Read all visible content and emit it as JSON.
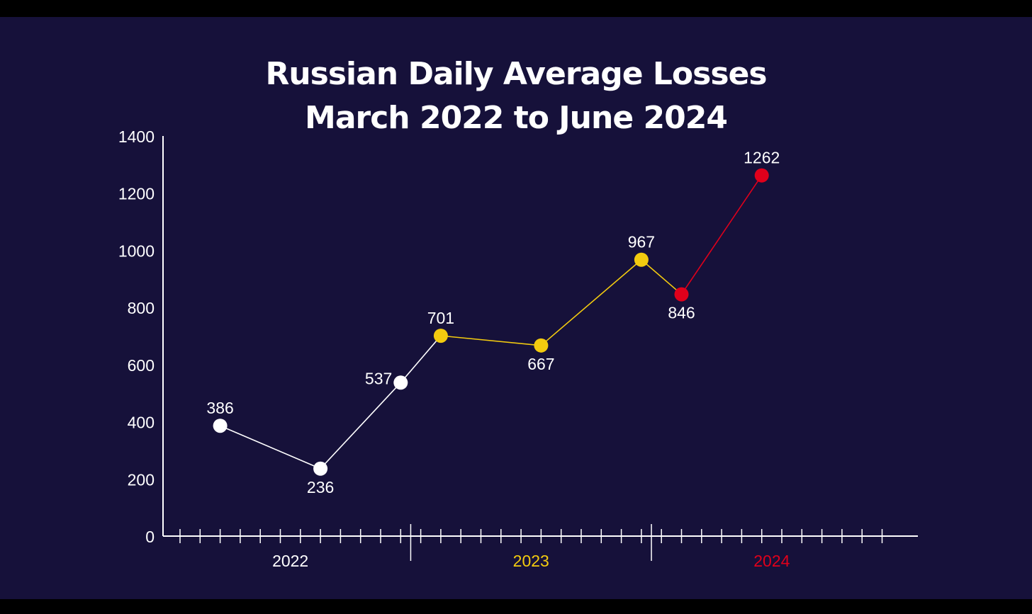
{
  "chart_data": {
    "type": "line",
    "title_line1": "Russian Daily Average Losses",
    "title_line2": "March 2022 to June 2024",
    "ylim": [
      0,
      1400
    ],
    "yticks": [
      0,
      200,
      400,
      600,
      800,
      1000,
      1200,
      1400
    ],
    "xlabel": "",
    "ylabel": "",
    "x_groups": [
      {
        "label": "2022",
        "color": "#ffffff"
      },
      {
        "label": "2023",
        "color": "#f3cb0f"
      },
      {
        "label": "2024",
        "color": "#e0001b"
      }
    ],
    "x_axis": {
      "months_start": "2022-01",
      "months_end": "2024-12"
    },
    "series": [
      {
        "color": "#ffffff",
        "points": [
          {
            "x": "2022-03",
            "y": 386
          },
          {
            "x": "2022-08",
            "y": 236
          },
          {
            "x": "2022-12",
            "y": 537
          },
          {
            "x": "2023-02",
            "y": 701
          }
        ]
      },
      {
        "color": "#f3cb0f",
        "points": [
          {
            "x": "2023-02",
            "y": 701
          },
          {
            "x": "2023-07",
            "y": 667
          },
          {
            "x": "2023-12",
            "y": 967
          },
          {
            "x": "2024-02",
            "y": 846
          }
        ]
      },
      {
        "color": "#e0001b",
        "points": [
          {
            "x": "2024-02",
            "y": 846
          },
          {
            "x": "2024-06",
            "y": 1262
          }
        ]
      }
    ],
    "data_labels": [
      {
        "x": "2022-03",
        "y": 386,
        "text": "386",
        "color": "#ffffff",
        "pos": "above"
      },
      {
        "x": "2022-08",
        "y": 236,
        "text": "236",
        "color": "#ffffff",
        "pos": "below"
      },
      {
        "x": "2022-12",
        "y": 537,
        "text": "537",
        "color": "#ffffff",
        "pos": "left"
      },
      {
        "x": "2023-02",
        "y": 701,
        "text": "701",
        "color": "#f3cb0f",
        "pos": "above"
      },
      {
        "x": "2023-07",
        "y": 667,
        "text": "667",
        "color": "#f3cb0f",
        "pos": "below"
      },
      {
        "x": "2023-12",
        "y": 967,
        "text": "967",
        "color": "#f3cb0f",
        "pos": "above"
      },
      {
        "x": "2024-02",
        "y": 846,
        "text": "846",
        "color": "#e0001b",
        "pos": "below"
      },
      {
        "x": "2024-06",
        "y": 1262,
        "text": "1262",
        "color": "#e0001b",
        "pos": "above"
      }
    ],
    "grid": false,
    "legend": "none"
  }
}
